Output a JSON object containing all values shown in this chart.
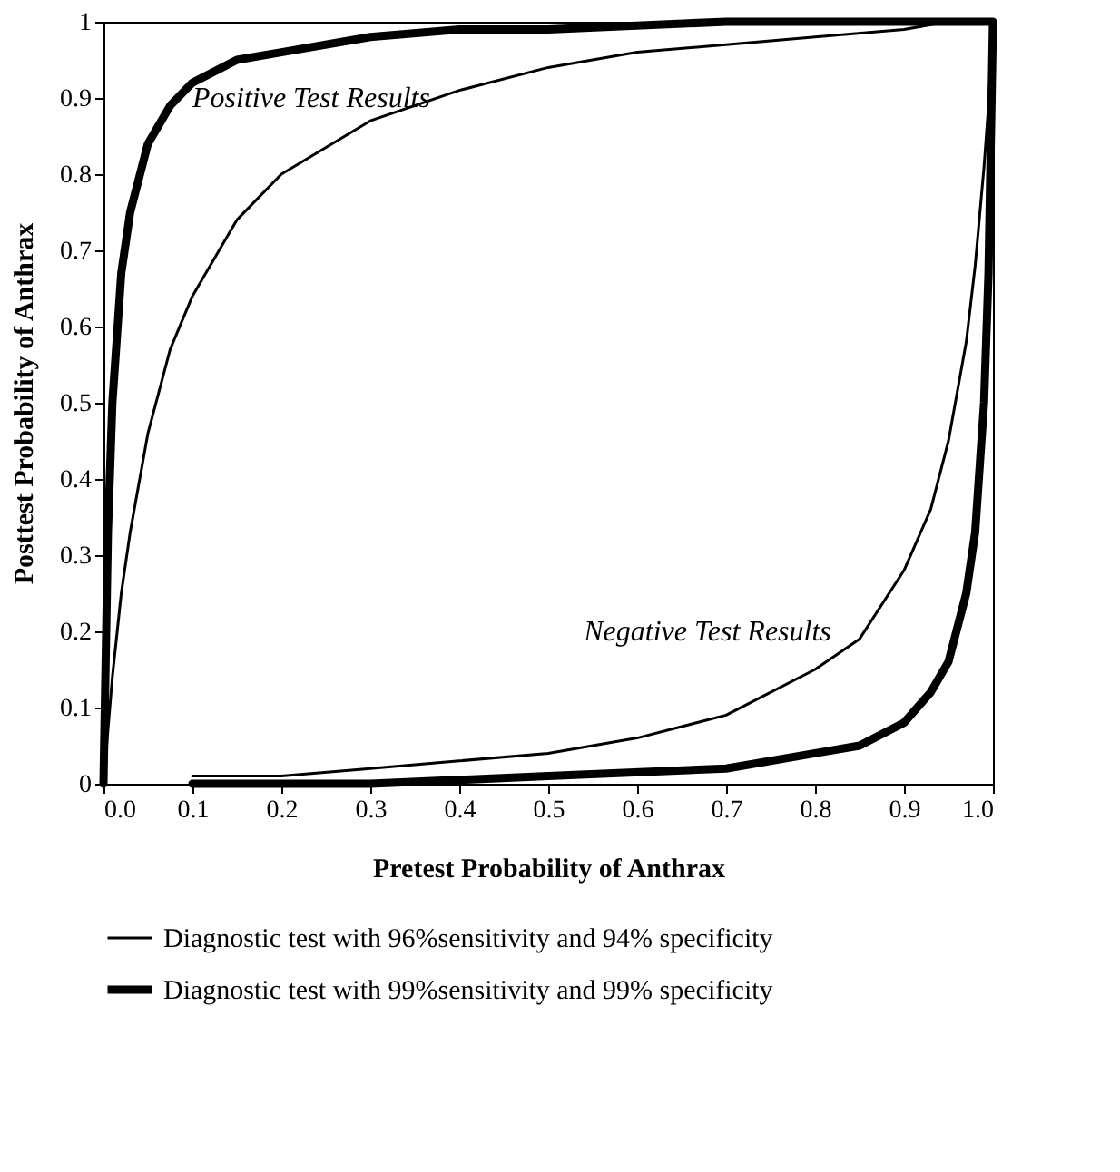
{
  "chart_data": {
    "type": "line",
    "xlabel": "Pretest Probability of Anthrax",
    "ylabel": "Posttest Probability of Anthrax",
    "series": [
      {
        "name": "Diagnostic test with 96%sensitivity and 94% specificity",
        "color": "#000000",
        "x": [
          0,
          0.005,
          0.01,
          0.02,
          0.03,
          0.05,
          0.075,
          0.1,
          0.15,
          0.2,
          0.3,
          0.4,
          0.5,
          0.6,
          0.7,
          0.8,
          0.9,
          0.95,
          1,
          0.995,
          0.99,
          0.98,
          0.97,
          0.95,
          0.93,
          0.9,
          0.85,
          0.8,
          0.7,
          0.6,
          0.5,
          0.4,
          0.3,
          0.2,
          0.1
        ],
        "values": [
          0,
          0.07,
          0.14,
          0.25,
          0.33,
          0.46,
          0.57,
          0.64,
          0.74,
          0.8,
          0.87,
          0.91,
          0.94,
          0.96,
          0.97,
          0.98,
          0.99,
          1,
          1,
          0.89,
          0.81,
          0.68,
          0.58,
          0.45,
          0.36,
          0.28,
          0.19,
          0.15,
          0.09,
          0.06,
          0.04,
          0.03,
          0.02,
          0.01,
          0.01
        ]
      },
      {
        "name": "Diagnostic test with 99%sensitivity and 99% specificity",
        "color": "#000000",
        "x": [
          0,
          0.005,
          0.01,
          0.02,
          0.03,
          0.05,
          0.075,
          0.1,
          0.15,
          0.2,
          0.3,
          0.4,
          0.5,
          0.7,
          1,
          0.995,
          0.99,
          0.98,
          0.97,
          0.95,
          0.93,
          0.9,
          0.85,
          0.8,
          0.7,
          0.5,
          0.3,
          0.1
        ],
        "values": [
          0,
          0.33,
          0.5,
          0.67,
          0.75,
          0.84,
          0.89,
          0.92,
          0.95,
          0.96,
          0.98,
          0.99,
          0.99,
          1,
          1,
          0.67,
          0.5,
          0.33,
          0.25,
          0.16,
          0.12,
          0.08,
          0.05,
          0.04,
          0.02,
          0.01,
          0,
          0
        ]
      }
    ],
    "xlim": [
      0,
      1
    ],
    "ylim": [
      0,
      1
    ],
    "xticks": [
      {
        "value": 0,
        "label": "0.0"
      },
      0.1,
      0.2,
      0.3,
      0.4,
      0.5,
      0.6,
      0.7,
      0.8,
      0.9,
      {
        "value": 1,
        "label": "1.0"
      }
    ],
    "yticks": [
      0,
      0.1,
      0.2,
      0.3,
      0.4,
      0.5,
      0.6,
      0.7,
      0.8,
      0.9,
      1
    ],
    "annotations": [
      "Positive Test Results",
      "Negative Test Results"
    ],
    "grid": false,
    "legend": "bottom",
    "line_style": "solid",
    "marker": "none"
  }
}
